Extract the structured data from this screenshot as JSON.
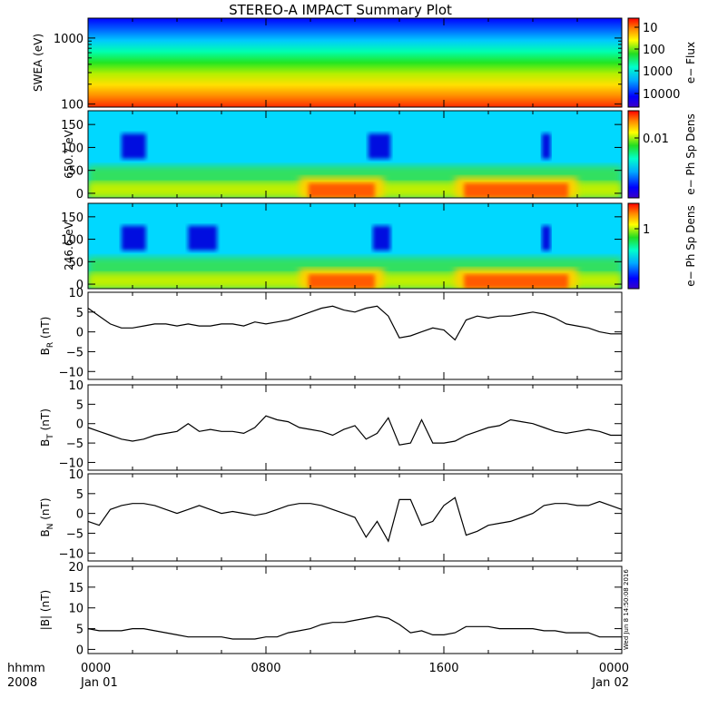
{
  "title": "STEREO-A IMPACT Summary Plot",
  "footer": {
    "left_top": "hhmm",
    "left_bottom": "2008"
  },
  "side_stamp": "Wed Jun  8 14:50:08 2016",
  "chart_data": [
    {
      "type": "heatmap",
      "ylabel": "SWEA (eV)",
      "ylog": true,
      "ylim": [
        90,
        2000
      ],
      "yticks": [
        "100",
        "1000"
      ],
      "colorbar": {
        "label": "e− Flux",
        "ticks": [
          "10",
          "100",
          "1000",
          "10000"
        ],
        "scale": "log",
        "range": [
          3,
          15000
        ]
      },
      "description_rows": [
        {
          "energy_eV": 1800,
          "level": 0.05
        },
        {
          "energy_eV": 1500,
          "level": 0.2
        },
        {
          "energy_eV": 1000,
          "level": 0.45
        },
        {
          "energy_eV": 600,
          "level": 0.6
        },
        {
          "energy_eV": 350,
          "level": 0.72
        },
        {
          "energy_eV": 200,
          "level": 0.85
        },
        {
          "energy_eV": 110,
          "level": 0.95
        }
      ]
    },
    {
      "type": "heatmap",
      "ylabel": "650.7 eV",
      "ylim": [
        -10,
        180
      ],
      "yticks": [
        "0",
        "50",
        "100",
        "150"
      ],
      "colorbar": {
        "label": "e− Ph Sp Dens",
        "ticks": [
          "0.01"
        ]
      },
      "hot_intervals_hours": [
        [
          9.5,
          13.3
        ],
        [
          16.5,
          22.0
        ]
      ],
      "depleted_intervals_hours": [
        [
          1.5,
          2.6
        ],
        [
          12.6,
          13.6
        ],
        [
          20.4,
          20.8
        ]
      ]
    },
    {
      "type": "heatmap",
      "ylabel": "246.6 eV",
      "ylim": [
        -10,
        180
      ],
      "yticks": [
        "0",
        "50",
        "100",
        "150"
      ],
      "colorbar": {
        "label": "e− Ph Sp Dens",
        "ticks": [
          "1"
        ]
      },
      "hot_intervals_hours": [
        [
          9.5,
          13.3
        ],
        [
          16.5,
          22.0
        ]
      ],
      "depleted_intervals_hours": [
        [
          1.5,
          2.6
        ],
        [
          4.5,
          5.8
        ],
        [
          12.8,
          13.6
        ],
        [
          20.4,
          20.8
        ]
      ]
    },
    {
      "type": "line",
      "ylabel": "B",
      "ysub": "R",
      "yunit": "(nT)",
      "ylim": [
        -12,
        10
      ],
      "yticks": [
        "−10",
        "−5",
        "0",
        "5",
        "10"
      ],
      "x_hours": [
        0,
        0.5,
        1,
        1.5,
        2,
        2.5,
        3,
        3.5,
        4,
        4.5,
        5,
        5.5,
        6,
        6.5,
        7,
        7.5,
        8,
        8.5,
        9,
        9.5,
        10,
        10.5,
        11,
        11.5,
        12,
        12.5,
        13,
        13.5,
        14,
        14.5,
        15,
        15.5,
        16,
        16.5,
        17,
        17.5,
        18,
        18.5,
        19,
        19.5,
        20,
        20.5,
        21,
        21.5,
        22,
        22.5,
        23,
        23.5,
        24
      ],
      "y": [
        6,
        4,
        2,
        1,
        1,
        1.5,
        2,
        2,
        1.5,
        2,
        1.5,
        1.5,
        2,
        2,
        1.5,
        2.5,
        2,
        2.5,
        3,
        4,
        5,
        6,
        6.5,
        5.5,
        5,
        6,
        6.5,
        4,
        -1.5,
        -1,
        0,
        1,
        0.5,
        -2,
        3,
        4,
        3.5,
        4,
        4,
        4.5,
        5,
        4.5,
        3.5,
        2,
        1.5,
        1,
        0,
        -0.5,
        -0.5
      ]
    },
    {
      "type": "line",
      "ylabel": "B",
      "ysub": "T",
      "yunit": "(nT)",
      "ylim": [
        -12,
        10
      ],
      "yticks": [
        "−10",
        "−5",
        "0",
        "5",
        "10"
      ],
      "x_hours": [
        0,
        0.5,
        1,
        1.5,
        2,
        2.5,
        3,
        3.5,
        4,
        4.5,
        5,
        5.5,
        6,
        6.5,
        7,
        7.5,
        8,
        8.5,
        9,
        9.5,
        10,
        10.5,
        11,
        11.5,
        12,
        12.5,
        13,
        13.5,
        14,
        14.5,
        15,
        15.5,
        16,
        16.5,
        17,
        17.5,
        18,
        18.5,
        19,
        19.5,
        20,
        20.5,
        21,
        21.5,
        22,
        22.5,
        23,
        23.5,
        24
      ],
      "y": [
        -1,
        -2,
        -3,
        -4,
        -4.5,
        -4,
        -3,
        -2.5,
        -2,
        0,
        -2,
        -1.5,
        -2,
        -2,
        -2.5,
        -1,
        2,
        1,
        0.5,
        -1,
        -1.5,
        -2,
        -3,
        -1.5,
        -0.5,
        -4,
        -2.5,
        1.5,
        -5.5,
        -5,
        1,
        -5,
        -5,
        -4.5,
        -3,
        -2,
        -1,
        -0.5,
        1,
        0.5,
        0,
        -1,
        -2,
        -2.5,
        -2,
        -1.5,
        -2,
        -3,
        -3
      ]
    },
    {
      "type": "line",
      "ylabel": "B",
      "ysub": "N",
      "yunit": "(nT)",
      "ylim": [
        -12,
        10
      ],
      "yticks": [
        "−10",
        "−5",
        "0",
        "5",
        "10"
      ],
      "x_hours": [
        0,
        0.5,
        1,
        1.5,
        2,
        2.5,
        3,
        3.5,
        4,
        4.5,
        5,
        5.5,
        6,
        6.5,
        7,
        7.5,
        8,
        8.5,
        9,
        9.5,
        10,
        10.5,
        11,
        11.5,
        12,
        12.5,
        13,
        13.5,
        14,
        14.5,
        15,
        15.5,
        16,
        16.5,
        17,
        17.5,
        18,
        18.5,
        19,
        19.5,
        20,
        20.5,
        21,
        21.5,
        22,
        22.5,
        23,
        23.5,
        24
      ],
      "y": [
        -2,
        -3,
        1,
        2,
        2.5,
        2.5,
        2,
        1,
        0,
        1,
        2,
        1,
        0,
        0.5,
        0,
        -0.5,
        0,
        1,
        2,
        2.5,
        2.5,
        2,
        1,
        0,
        -1,
        -6,
        -2,
        -7,
        3.5,
        3.5,
        -3,
        -2,
        2,
        4,
        -5.5,
        -4.5,
        -3,
        -2.5,
        -2,
        -1,
        0,
        2,
        2.5,
        2.5,
        2,
        2,
        3,
        2,
        1
      ]
    },
    {
      "type": "line",
      "ylabel": "|B|",
      "yunit": "(nT)",
      "ylim": [
        -1,
        20
      ],
      "yticks": [
        "0",
        "5",
        "10",
        "15",
        "20"
      ],
      "x_hours": [
        0,
        0.5,
        1,
        1.5,
        2,
        2.5,
        3,
        3.5,
        4,
        4.5,
        5,
        5.5,
        6,
        6.5,
        7,
        7.5,
        8,
        8.5,
        9,
        9.5,
        10,
        10.5,
        11,
        11.5,
        12,
        12.5,
        13,
        13.5,
        14,
        14.5,
        15,
        15.5,
        16,
        16.5,
        17,
        17.5,
        18,
        18.5,
        19,
        19.5,
        20,
        20.5,
        21,
        21.5,
        22,
        22.5,
        23,
        23.5,
        24
      ],
      "y": [
        5,
        4.5,
        4.5,
        4.5,
        5,
        5,
        4.5,
        4,
        3.5,
        3,
        3,
        3,
        3,
        2.5,
        2.5,
        2.5,
        3,
        3,
        4,
        4.5,
        5,
        6,
        6.5,
        6.5,
        7,
        7.5,
        8,
        7.5,
        6,
        4,
        4.5,
        3.5,
        3.5,
        4,
        5.5,
        5.5,
        5.5,
        5,
        5,
        5,
        5,
        4.5,
        4.5,
        4,
        4,
        4,
        3,
        3,
        3
      ]
    }
  ],
  "x_axis": {
    "range_hours": [
      0,
      24
    ],
    "major_ticks": [
      {
        "hour": 0,
        "label": "0000",
        "date": "Jan 01"
      },
      {
        "hour": 8,
        "label": "0800",
        "date": ""
      },
      {
        "hour": 16,
        "label": "1600",
        "date": ""
      },
      {
        "hour": 24,
        "label": "0000",
        "date": "Jan 02"
      }
    ]
  }
}
